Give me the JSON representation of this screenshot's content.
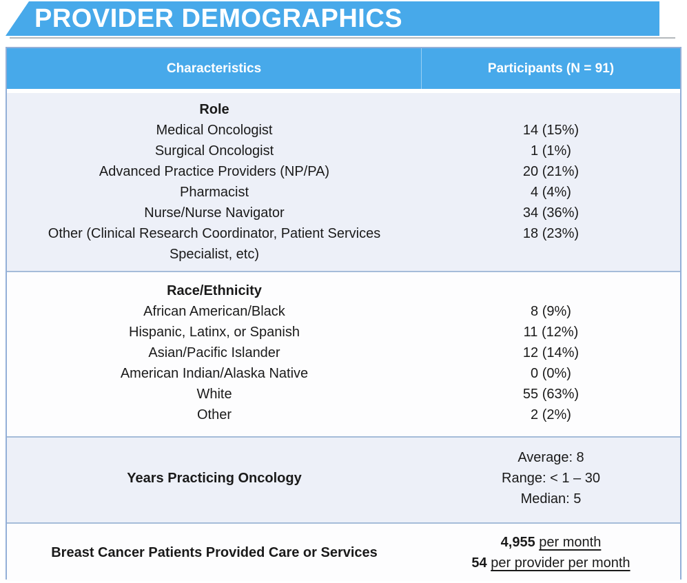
{
  "banner": {
    "title": "PROVIDER DEMOGRAPHICS"
  },
  "colors": {
    "banner_blue": "#47a9ea",
    "band_light": "#edf0f8",
    "band_white": "#fdfdfe",
    "border_blue": "#93afd7",
    "divider_blue": "#a5bcd9",
    "underline_gray": "#b4b8bc",
    "text_dark": "#1a1a1a",
    "header_text": "#ffffff"
  },
  "table": {
    "header": {
      "characteristics": "Characteristics",
      "participants": "Participants (N = 91)"
    },
    "role_section": {
      "title": "Role",
      "rows": [
        {
          "label": "Medical Oncologist",
          "value": "14 (15%)"
        },
        {
          "label": "Surgical Oncologist",
          "value": "1 (1%)"
        },
        {
          "label": "Advanced Practice Providers (NP/PA)",
          "value": "20 (21%)"
        },
        {
          "label": "Pharmacist",
          "value": "4 (4%)"
        },
        {
          "label": "Nurse/Nurse Navigator",
          "value": "34 (36%)"
        },
        {
          "label": "Other (Clinical Research Coordinator, Patient Services Specialist, etc)",
          "value": "18 (23%)"
        }
      ]
    },
    "race_section": {
      "title": "Race/Ethnicity",
      "rows": [
        {
          "label": "African American/Black",
          "value": "8 (9%)"
        },
        {
          "label": "Hispanic, Latinx, or Spanish",
          "value": "11 (12%)"
        },
        {
          "label": "Asian/Pacific Islander",
          "value": "12 (14%)"
        },
        {
          "label": "American Indian/Alaska Native",
          "value": "0 (0%)"
        },
        {
          "label": "White",
          "value": "55 (63%)"
        },
        {
          "label": "Other",
          "value": "2 (2%)"
        }
      ]
    },
    "years_section": {
      "label": "Years Practicing Oncology",
      "stats": [
        "Average: 8",
        "Range: < 1 – 30",
        "Median: 5"
      ]
    },
    "patients_section": {
      "label": "Breast Cancer Patients Provided Care or Services",
      "stats": [
        {
          "number": "4,955",
          "unit": "per month"
        },
        {
          "number": "54",
          "unit": "per provider per month"
        }
      ]
    }
  }
}
